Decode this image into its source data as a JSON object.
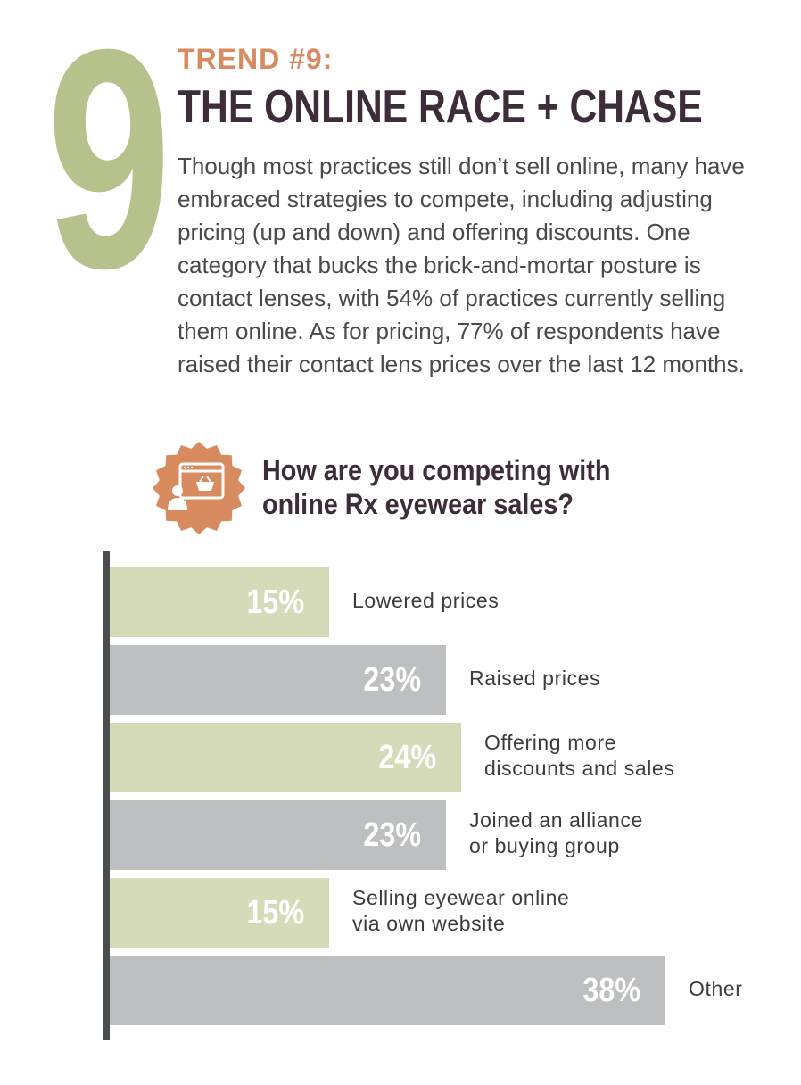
{
  "big_number": "9",
  "trend_label": "TREND #9:",
  "headline": "THE ONLINE RACE + CHASE",
  "body_text": "Though most practices still don’t sell online, many have embraced strategies to compete, including adjusting pricing (up and down) and offering discounts. One category that bucks the brick-and-mortar posture is contact lenses, with 54% of practices currently selling them online. As for pricing, 77% of respondents have raised their contact lens prices over the last 12 months.",
  "badge_icon": "online-shopping-icon",
  "colors": {
    "accent_orange": "#d78b5f",
    "green_bar": "#d5dbb9",
    "gray_bar": "#bebfc1",
    "title_dark": "#3d2c3a",
    "number_green": "#b6c18c"
  },
  "chart_data": {
    "type": "bar",
    "orientation": "horizontal",
    "title": "How are you competing with online Rx eyewear sales?",
    "categories": [
      "Lowered prices",
      "Raised prices",
      "Offering more discounts and sales",
      "Joined an alliance or buying group",
      "Selling eyewear online via own website",
      "Other"
    ],
    "values": [
      15,
      23,
      24,
      23,
      15,
      38
    ],
    "value_labels": [
      "15%",
      "23%",
      "24%",
      "23%",
      "15%",
      "38%"
    ],
    "label_lines": [
      [
        "Lowered prices"
      ],
      [
        "Raised prices"
      ],
      [
        "Offering more",
        "discounts and sales"
      ],
      [
        "Joined an alliance",
        "or buying group"
      ],
      [
        "Selling eyewear online",
        "via own website"
      ],
      [
        "Other"
      ]
    ],
    "bar_colors": [
      "#d5dbb9",
      "#bebfc1",
      "#d5dbb9",
      "#bebfc1",
      "#d5dbb9",
      "#bebfc1"
    ],
    "xlim": [
      0,
      40
    ],
    "grid": false
  }
}
